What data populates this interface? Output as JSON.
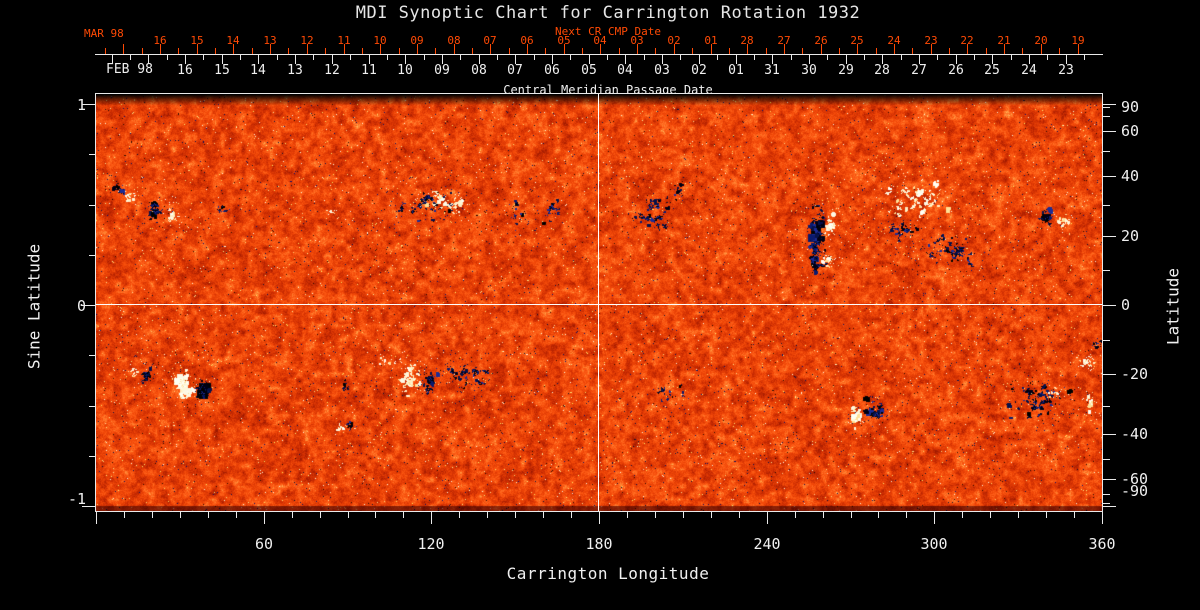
{
  "chart": {
    "title": "MDI Synoptic Chart for Carrington Rotation 1932"
  },
  "axes": {
    "next_cr": {
      "title": "Next CR CMP Date",
      "month_label": "MAR 98",
      "ticks": [
        "16",
        "15",
        "14",
        "13",
        "12",
        "11",
        "10",
        "09",
        "08",
        "07",
        "06",
        "05",
        "04",
        "03",
        "02",
        "01",
        "28",
        "27",
        "26",
        "25",
        "24",
        "23",
        "22",
        "21",
        "20",
        "19"
      ]
    },
    "cmp": {
      "title": "Central Meridian Passage Date",
      "month_label": "FEB 98",
      "ticks": [
        "16",
        "15",
        "14",
        "13",
        "12",
        "11",
        "10",
        "09",
        "08",
        "07",
        "06",
        "05",
        "04",
        "03",
        "02",
        "01",
        "31",
        "30",
        "29",
        "28",
        "27",
        "26",
        "25",
        "24",
        "23"
      ]
    },
    "x": {
      "title": "Carrington Longitude",
      "tick_labels": [
        "60",
        "120",
        "180",
        "240",
        "300",
        "360"
      ],
      "range": [
        0,
        360
      ]
    },
    "y_left": {
      "title": "Sine Latitude",
      "tick_labels": [
        "1",
        "0",
        "-1"
      ],
      "range": [
        -1,
        1
      ]
    },
    "y_right": {
      "title": "Latitude",
      "tick_labels": [
        "90",
        "60",
        "40",
        "20",
        "0",
        "-20",
        "-40",
        "-60",
        "-90"
      ]
    }
  },
  "colors": {
    "background": "#000000",
    "axis_text": "#f0f0f0",
    "date_axis_red": "#ff4a05",
    "frame": "#e9e9e9",
    "reference_line": "#ffffff",
    "quiet_sun_orange": "#f04a08",
    "negative_polarity_navy": "#0a1a6e",
    "positive_polarity_cream": "#fff8e0"
  },
  "chart_data": {
    "type": "heatmap",
    "title": "MDI Synoptic Chart for Carrington Rotation 1932",
    "description": "Full-surface solar magnetogram synoptic map. Noisy orange field = quiet Sun; dark navy/black blobs = negative magnetic polarity; white/cream/yellow patches = positive polarity plage. White reference lines mark Carrington longitude 180 and latitude 0.",
    "xlabel": "Carrington Longitude",
    "ylabel_left": "Sine Latitude",
    "ylabel_right": "Latitude",
    "x_range_deg": [
      0,
      360
    ],
    "sine_latitude_range": [
      -1,
      1
    ],
    "x_major_ticks": [
      60,
      120,
      180,
      240,
      300,
      360
    ],
    "x_minor_tick_step_deg": 10,
    "latitude_major_ticks": [
      90,
      60,
      40,
      20,
      0,
      -20,
      -40,
      -60,
      -90
    ],
    "latitude_minor_ticks": [
      80,
      70,
      50,
      30,
      10,
      -10,
      -30,
      -50,
      -70,
      -80
    ],
    "sine_latitude_minor_ticks": [
      0.75,
      0.5,
      0.25,
      -0.25,
      -0.5,
      -0.75
    ],
    "reference_lines": {
      "longitude_deg": 180,
      "latitude_deg": 0
    },
    "polar_gap": "dark bands at top and bottom edges (missing polar data)",
    "active_regions": [
      {
        "lon": 8,
        "lat": 34,
        "polarity": "negative",
        "dots": 8,
        "max_r": 2,
        "sx": 2,
        "sy": 2,
        "walks": 0,
        "core": 0
      },
      {
        "lon": 11.5,
        "lat": 33,
        "polarity": "positive",
        "dots": 9,
        "max_r": 2,
        "sx": 2.5,
        "sy": 2,
        "walks": 0,
        "core": 0
      },
      {
        "lon": 21,
        "lat": 28,
        "polarity": "negative",
        "dots": 20,
        "max_r": 3,
        "sx": 2.5,
        "sy": 3,
        "walks": 4,
        "core": 3
      },
      {
        "lon": 27.5,
        "lat": 26.5,
        "polarity": "positive",
        "dots": 16,
        "max_r": 3,
        "sx": 2.5,
        "sy": 2.5,
        "walks": 0,
        "core": 3
      },
      {
        "lon": 45,
        "lat": 28.5,
        "polarity": "negative",
        "dots": 8,
        "max_r": 2,
        "sx": 2,
        "sy": 1.5,
        "walks": 0,
        "core": 0
      },
      {
        "lon": 84,
        "lat": 28,
        "polarity": "positive",
        "dots": 5,
        "max_r": 2,
        "sx": 1.5,
        "sy": 1.5,
        "walks": 0,
        "core": 0
      },
      {
        "lon": 118,
        "lat": 29,
        "polarity": "negative",
        "dots": 30,
        "max_r": 2,
        "sx": 9,
        "sy": 5,
        "walks": 8,
        "core": 0
      },
      {
        "lon": 126,
        "lat": 30,
        "polarity": "positive",
        "dots": 22,
        "max_r": 2,
        "sx": 7,
        "sy": 4,
        "walks": 5,
        "core": 0
      },
      {
        "lon": 131,
        "lat": 31,
        "polarity": "positive",
        "dots": 4,
        "max_r": 3,
        "sx": 1,
        "sy": 1,
        "walks": 0,
        "core": 2
      },
      {
        "lon": 150,
        "lat": 27,
        "polarity": "negative",
        "dots": 10,
        "max_r": 2,
        "sx": 4,
        "sy": 4,
        "walks": 0,
        "core": 0
      },
      {
        "lon": 163,
        "lat": 28,
        "polarity": "negative",
        "dots": 10,
        "max_r": 2,
        "sx": 4,
        "sy": 4,
        "walks": 2,
        "core": 0
      },
      {
        "lon": 199,
        "lat": 27,
        "polarity": "negative",
        "dots": 26,
        "max_r": 3,
        "sx": 6,
        "sy": 5,
        "walks": 6,
        "core": 0
      },
      {
        "lon": 207,
        "lat": 34,
        "polarity": "negative",
        "dots": 8,
        "max_r": 2,
        "sx": 4,
        "sy": 3,
        "walks": 0,
        "core": 0
      },
      {
        "lon": 258,
        "lat": 21,
        "polarity": "negative",
        "dots": 30,
        "max_r": 5,
        "sx": 2.5,
        "sy": 9,
        "walks": 8,
        "core": 6
      },
      {
        "lon": 257,
        "lat": 12,
        "polarity": "negative",
        "dots": 12,
        "max_r": 4,
        "sx": 2,
        "sy": 3,
        "walks": 3,
        "core": 4
      },
      {
        "lon": 263,
        "lat": 23,
        "polarity": "positive",
        "dots": 18,
        "max_r": 3,
        "sx": 2.5,
        "sy": 5,
        "walks": 0,
        "core": 4
      },
      {
        "lon": 262,
        "lat": 13,
        "polarity": "positive",
        "dots": 10,
        "max_r": 3,
        "sx": 2,
        "sy": 2,
        "walks": 0,
        "core": 3
      },
      {
        "lon": 293,
        "lat": 32,
        "polarity": "positive",
        "dots": 46,
        "max_r": 3,
        "sx": 12,
        "sy": 7,
        "walks": 12,
        "core": 0
      },
      {
        "lon": 305,
        "lat": 16,
        "polarity": "negative",
        "dots": 30,
        "max_r": 2,
        "sx": 9,
        "sy": 4,
        "walks": 8,
        "core": 0
      },
      {
        "lon": 288,
        "lat": 22,
        "polarity": "negative",
        "dots": 14,
        "max_r": 2,
        "sx": 6,
        "sy": 3,
        "walks": 4,
        "core": 0
      },
      {
        "lon": 340,
        "lat": 26,
        "polarity": "negative",
        "dots": 12,
        "max_r": 4,
        "sx": 2,
        "sy": 2.5,
        "walks": 2,
        "core": 5
      },
      {
        "lon": 346.5,
        "lat": 25,
        "polarity": "positive",
        "dots": 14,
        "max_r": 2,
        "sx": 3,
        "sy": 3,
        "walks": 0,
        "core": 0
      },
      {
        "lon": 14,
        "lat": -20,
        "polarity": "positive",
        "dots": 8,
        "max_r": 2,
        "sx": 2,
        "sy": 2,
        "walks": 0,
        "core": 0
      },
      {
        "lon": 18.5,
        "lat": -20.5,
        "polarity": "negative",
        "dots": 10,
        "max_r": 3,
        "sx": 2,
        "sy": 2.5,
        "walks": 2,
        "core": 3
      },
      {
        "lon": 31,
        "lat": -23,
        "polarity": "positive",
        "dots": 26,
        "max_r": 4,
        "sx": 4,
        "sy": 3.5,
        "walks": 4,
        "core": 5
      },
      {
        "lon": 38.5,
        "lat": -25,
        "polarity": "negative",
        "dots": 16,
        "max_r": 4,
        "sx": 2,
        "sy": 2.5,
        "walks": 2,
        "core": 8
      },
      {
        "lon": 89,
        "lat": -24,
        "polarity": "negative",
        "dots": 8,
        "max_r": 2,
        "sx": 2,
        "sy": 2,
        "walks": 0,
        "core": 0
      },
      {
        "lon": 112,
        "lat": -21,
        "polarity": "positive",
        "dots": 26,
        "max_r": 3,
        "sx": 4,
        "sy": 5,
        "walks": 6,
        "core": 0
      },
      {
        "lon": 119.5,
        "lat": -22,
        "polarity": "negative",
        "dots": 14,
        "max_r": 3,
        "sx": 2.5,
        "sy": 3,
        "walks": 3,
        "core": 4
      },
      {
        "lon": 133,
        "lat": -21,
        "polarity": "negative",
        "dots": 22,
        "max_r": 2,
        "sx": 9,
        "sy": 4,
        "walks": 6,
        "core": 0
      },
      {
        "lon": 104,
        "lat": -17,
        "polarity": "positive",
        "dots": 8,
        "max_r": 2,
        "sx": 3,
        "sy": 2,
        "walks": 0,
        "core": 0
      },
      {
        "lon": 87.5,
        "lat": -38,
        "polarity": "positive",
        "dots": 5,
        "max_r": 2,
        "sx": 1.5,
        "sy": 1.5,
        "walks": 0,
        "core": 0
      },
      {
        "lon": 91,
        "lat": -37,
        "polarity": "negative",
        "dots": 6,
        "max_r": 2,
        "sx": 1.5,
        "sy": 1.5,
        "walks": 0,
        "core": 2
      },
      {
        "lon": 205,
        "lat": -26,
        "polarity": "negative",
        "dots": 12,
        "max_r": 2,
        "sx": 8,
        "sy": 4,
        "walks": 2,
        "core": 0
      },
      {
        "lon": 272,
        "lat": -34,
        "polarity": "positive",
        "dots": 14,
        "max_r": 3,
        "sx": 2,
        "sy": 3,
        "walks": 0,
        "core": 5
      },
      {
        "lon": 278,
        "lat": -32,
        "polarity": "negative",
        "dots": 18,
        "max_r": 3,
        "sx": 4,
        "sy": 3.5,
        "walks": 4,
        "core": 4
      },
      {
        "lon": 336,
        "lat": -28,
        "polarity": "negative",
        "dots": 40,
        "max_r": 3,
        "sx": 10,
        "sy": 6,
        "walks": 10,
        "core": 0
      },
      {
        "lon": 342,
        "lat": -26,
        "polarity": "positive",
        "dots": 10,
        "max_r": 2,
        "sx": 5,
        "sy": 2,
        "walks": 0,
        "core": 0
      },
      {
        "lon": 356,
        "lat": -29,
        "polarity": "positive",
        "dots": 8,
        "max_r": 2,
        "sx": 2,
        "sy": 3,
        "walks": 0,
        "core": 3
      },
      {
        "lon": 354,
        "lat": -16.5,
        "polarity": "positive",
        "dots": 12,
        "max_r": 2,
        "sx": 3,
        "sy": 3,
        "walks": 2,
        "core": 3
      },
      {
        "lon": 358,
        "lat": -11,
        "polarity": "negative",
        "dots": 6,
        "max_r": 2,
        "sx": 1.5,
        "sy": 2,
        "walks": 0,
        "core": 0
      }
    ]
  }
}
